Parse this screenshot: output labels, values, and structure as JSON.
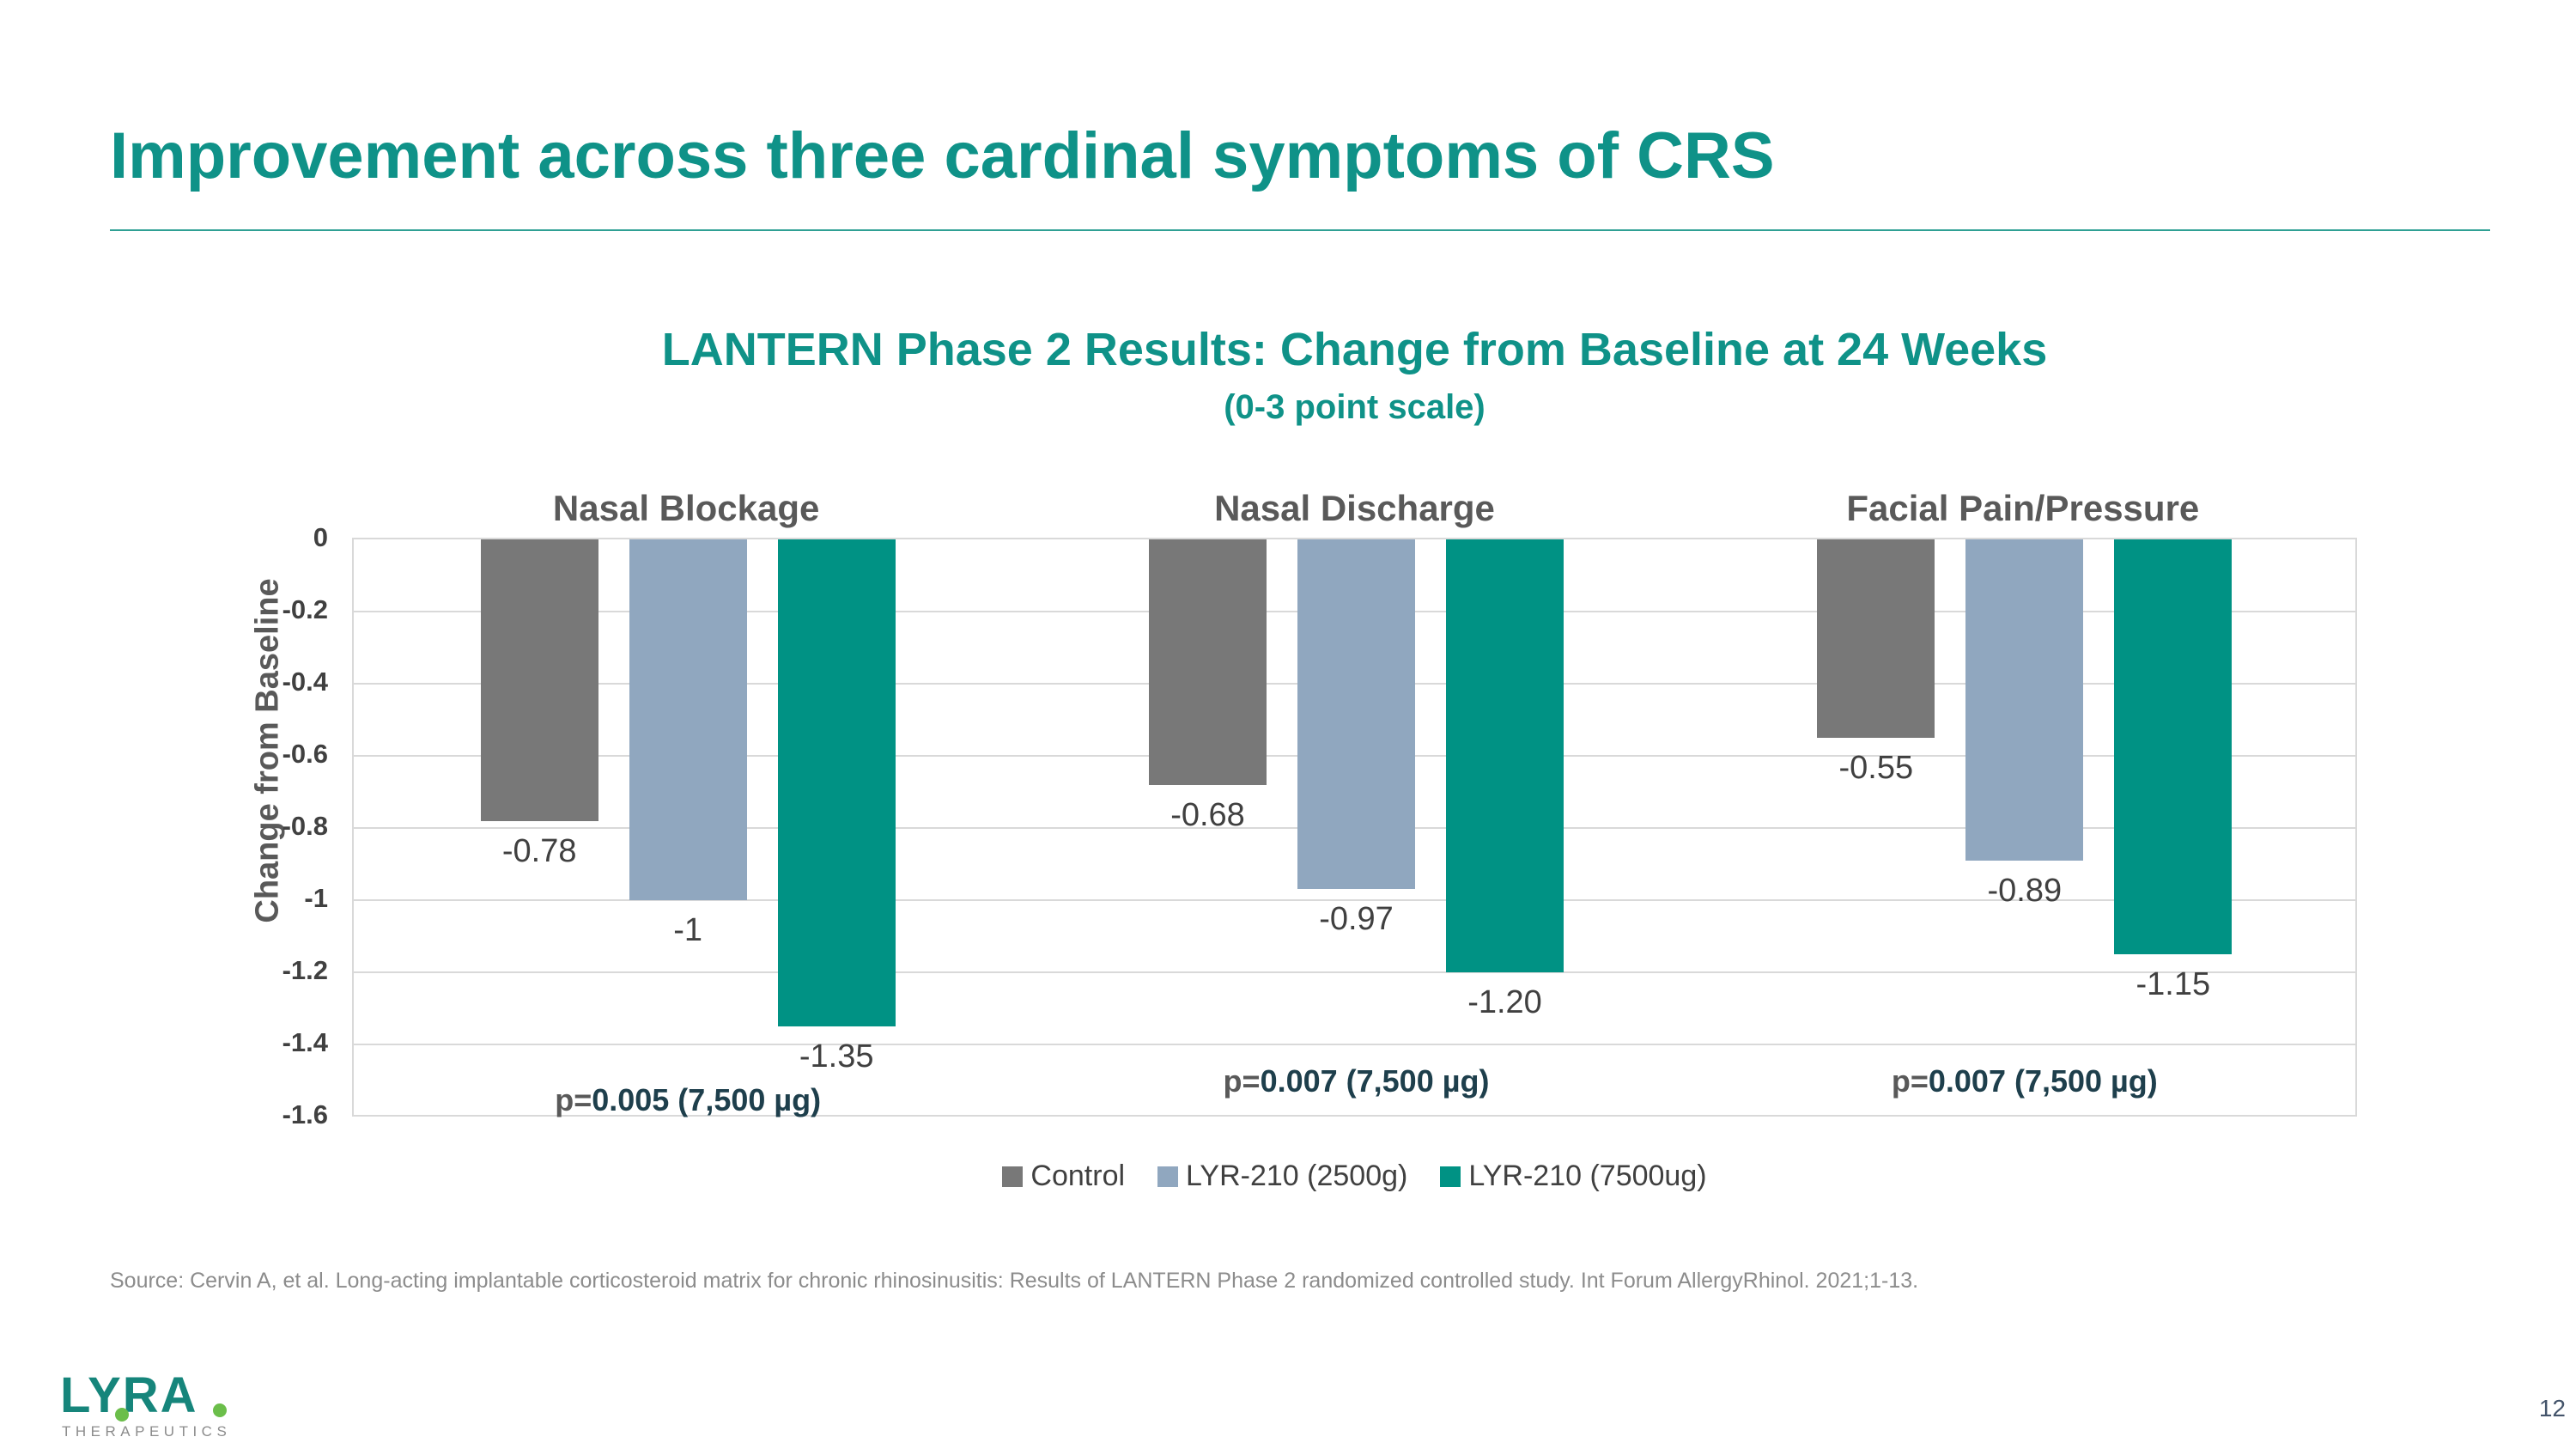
{
  "slide": {
    "title": "Improvement across three cardinal symptoms of CRS",
    "source": "Source: Cervin A, et al. Long-acting implantable corticosteroid matrix for chronic rhinosinusitis: Results of LANTERN Phase 2 randomized controlled study. Int Forum AllergyRhinol. 2021;1-13.",
    "page_number": "12",
    "logo": {
      "brand": "LYRA",
      "tagline": "THERAPEUTICS"
    }
  },
  "chart_data": {
    "type": "bar",
    "title": "LANTERN Phase 2 Results: Change from Baseline at 24 Weeks",
    "subtitle": "(0-3 point scale)",
    "ylabel": "Change from Baseline",
    "ylim": [
      0,
      -1.6
    ],
    "ytick_interval": 0.2,
    "yticks": [
      "0",
      "-0.2",
      "-0.4",
      "-0.6",
      "-0.8",
      "-1",
      "-1.2",
      "-1.4",
      "-1.6"
    ],
    "grid": true,
    "legend_position": "bottom",
    "categories": [
      "Nasal Blockage",
      "Nasal Discharge",
      "Facial Pain/Pressure"
    ],
    "series": [
      {
        "name": "Control",
        "color": "#787878",
        "values": [
          -0.78,
          -0.68,
          -0.55
        ],
        "value_labels": [
          "-0.78",
          "-0.68",
          "-0.55"
        ]
      },
      {
        "name": "LYR-210 (2500g)",
        "color": "#90A7BF",
        "values": [
          -1.0,
          -0.97,
          -0.89
        ],
        "value_labels": [
          "-1",
          "-0.97",
          "-0.89"
        ]
      },
      {
        "name": "LYR-210 (7500ug)",
        "color": "#009284",
        "values": [
          -1.35,
          -1.2,
          -1.15
        ],
        "value_labels": [
          "-1.35",
          "-1.20",
          "-1.15"
        ]
      }
    ],
    "p_values": [
      {
        "prefix": "p=",
        "text": "0.005 (7,500 µg)"
      },
      {
        "prefix": "p=",
        "text": "0.007 (7,500 µg)"
      },
      {
        "prefix": "p=",
        "text": "0.007 (7,500 µg)"
      }
    ]
  },
  "colors": {
    "accent_teal": "#0F9288",
    "divider_teal": "#2FA094",
    "heading_gray": "#595959",
    "tick_gray": "#404040",
    "grid_gray": "#D9D9D9",
    "value_label": "#404040",
    "p_prefix": "#595959",
    "p_value": "#1E3F4C",
    "legend_text": "#404040",
    "source_gray": "#8C8C8C",
    "page_number": "#44546A",
    "logo_teal": "#16857B",
    "logo_green": "#6BBE4A"
  }
}
